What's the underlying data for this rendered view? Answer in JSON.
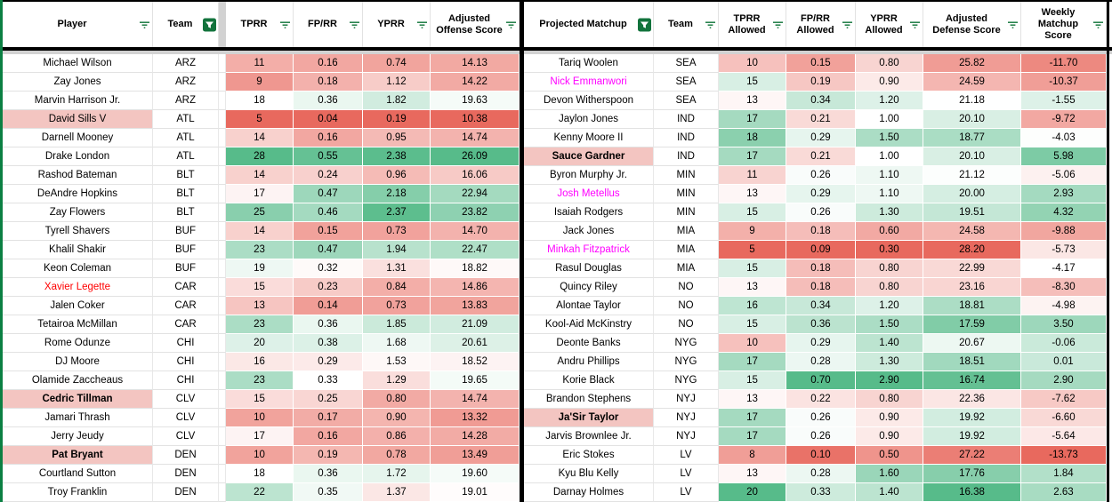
{
  "app": {
    "description": "Fantasy football WR vs cornerback matchup spreadsheet"
  },
  "colors": {
    "heat_red": "#e8695e",
    "heat_mid": "#ffffff",
    "heat_green": "#57bb8a",
    "name_highlight": "#f3c5c1",
    "special_text_red": "#ff0000",
    "special_text_magenta": "#ff00ff",
    "filter_icon_green": "#1e7e45",
    "active_filter_box_green": "#12733c",
    "frozen_divider_gray": "#d2d2d2",
    "table_border_black": "#000000",
    "sheet_border_green": "#0b8043"
  },
  "heat_scales": {
    "left": {
      "tprr": {
        "redEnd": 5,
        "mid": 18,
        "greenEnd": 28
      },
      "fprr": {
        "redEnd": 0.04,
        "mid": 0.33,
        "greenEnd": 0.57
      },
      "yprr": {
        "redEnd": 0.19,
        "mid": 1.6,
        "greenEnd": 2.4
      },
      "adj": {
        "redEnd": 10.38,
        "mid": 19.2,
        "greenEnd": 26.09
      }
    },
    "right": {
      "tprr": {
        "redEnd": 5,
        "mid": 13.5,
        "greenEnd": 20
      },
      "fprr": {
        "redEnd": 0.09,
        "mid": 0.25,
        "greenEnd": 0.52
      },
      "yprr": {
        "redEnd": 0.3,
        "mid": 1.0,
        "greenEnd": 2.0
      },
      "adj": {
        "redEnd": 28.2,
        "mid": 21.2,
        "greenEnd": 16.38
      },
      "weekly": {
        "redEnd": -13.73,
        "mid": -4.2,
        "greenEnd": 9.0
      }
    }
  },
  "left_table": {
    "headers": [
      {
        "label": "Player",
        "filter": "inactive"
      },
      {
        "label": "Team",
        "filter": "active"
      },
      {
        "label": "TPRR",
        "filter": "inactive"
      },
      {
        "label": "FP/RR",
        "filter": "inactive"
      },
      {
        "label": "YPRR",
        "filter": "inactive"
      },
      {
        "label": "Adjusted Offense Score",
        "filter": "inactive"
      }
    ],
    "rows": [
      {
        "player": "Michael Wilson",
        "team": "ARZ",
        "tprr": "11",
        "fprr": "0.16",
        "yprr": "0.74",
        "adj": "14.13"
      },
      {
        "player": "Zay Jones",
        "team": "ARZ",
        "tprr": "9",
        "fprr": "0.18",
        "yprr": "1.12",
        "adj": "14.22"
      },
      {
        "player": "Marvin Harrison Jr.",
        "team": "ARZ",
        "tprr": "18",
        "fprr": "0.36",
        "yprr": "1.82",
        "adj": "19.63"
      },
      {
        "player": "David Sills V",
        "team": "ATL",
        "tprr": "5",
        "fprr": "0.04",
        "yprr": "0.19",
        "adj": "10.38",
        "style": "pink"
      },
      {
        "player": "Darnell Mooney",
        "team": "ATL",
        "tprr": "14",
        "fprr": "0.16",
        "yprr": "0.95",
        "adj": "14.74"
      },
      {
        "player": "Drake London",
        "team": "ATL",
        "tprr": "28",
        "fprr": "0.55",
        "yprr": "2.38",
        "adj": "26.09"
      },
      {
        "player": "Rashod Bateman",
        "team": "BLT",
        "tprr": "14",
        "fprr": "0.24",
        "yprr": "0.96",
        "adj": "16.06"
      },
      {
        "player": "DeAndre Hopkins",
        "team": "BLT",
        "tprr": "17",
        "fprr": "0.47",
        "yprr": "2.18",
        "adj": "22.94"
      },
      {
        "player": "Zay Flowers",
        "team": "BLT",
        "tprr": "25",
        "fprr": "0.46",
        "yprr": "2.37",
        "adj": "23.82"
      },
      {
        "player": "Tyrell Shavers",
        "team": "BUF",
        "tprr": "14",
        "fprr": "0.15",
        "yprr": "0.73",
        "adj": "14.70"
      },
      {
        "player": "Khalil Shakir",
        "team": "BUF",
        "tprr": "23",
        "fprr": "0.47",
        "yprr": "1.94",
        "adj": "22.47"
      },
      {
        "player": "Keon Coleman",
        "team": "BUF",
        "tprr": "19",
        "fprr": "0.32",
        "yprr": "1.31",
        "adj": "18.82"
      },
      {
        "player": "Xavier Legette",
        "team": "CAR",
        "tprr": "15",
        "fprr": "0.23",
        "yprr": "0.84",
        "adj": "14.86",
        "style": "red-text"
      },
      {
        "player": "Jalen Coker",
        "team": "CAR",
        "tprr": "13",
        "fprr": "0.14",
        "yprr": "0.73",
        "adj": "13.83"
      },
      {
        "player": "Tetairoa McMillan",
        "team": "CAR",
        "tprr": "23",
        "fprr": "0.36",
        "yprr": "1.85",
        "adj": "21.09"
      },
      {
        "player": "Rome Odunze",
        "team": "CHI",
        "tprr": "20",
        "fprr": "0.38",
        "yprr": "1.68",
        "adj": "20.61"
      },
      {
        "player": "DJ Moore",
        "team": "CHI",
        "tprr": "16",
        "fprr": "0.29",
        "yprr": "1.53",
        "adj": "18.52"
      },
      {
        "player": "Olamide Zaccheaus",
        "team": "CHI",
        "tprr": "23",
        "fprr": "0.33",
        "yprr": "1.29",
        "adj": "19.65"
      },
      {
        "player": "Cedric Tillman",
        "team": "CLV",
        "tprr": "15",
        "fprr": "0.25",
        "yprr": "0.80",
        "adj": "14.74",
        "style": "bold-pink"
      },
      {
        "player": "Jamari Thrash",
        "team": "CLV",
        "tprr": "10",
        "fprr": "0.17",
        "yprr": "0.90",
        "adj": "13.32"
      },
      {
        "player": "Jerry Jeudy",
        "team": "CLV",
        "tprr": "17",
        "fprr": "0.16",
        "yprr": "0.86",
        "adj": "14.28"
      },
      {
        "player": "Pat Bryant",
        "team": "DEN",
        "tprr": "10",
        "fprr": "0.19",
        "yprr": "0.78",
        "adj": "13.49",
        "style": "bold-pink"
      },
      {
        "player": "Courtland Sutton",
        "team": "DEN",
        "tprr": "18",
        "fprr": "0.36",
        "yprr": "1.72",
        "adj": "19.60"
      },
      {
        "player": "Troy Franklin",
        "team": "DEN",
        "tprr": "22",
        "fprr": "0.35",
        "yprr": "1.37",
        "adj": "19.01"
      }
    ]
  },
  "right_table": {
    "headers": [
      {
        "label": "Projected Matchup",
        "filter": "active"
      },
      {
        "label": "Team",
        "filter": "inactive"
      },
      {
        "label": "TPRR Allowed",
        "filter": "inactive"
      },
      {
        "label": "FP/RR Allowed",
        "filter": "inactive"
      },
      {
        "label": "YPRR Allowed",
        "filter": "inactive"
      },
      {
        "label": "Adjusted Defense Score",
        "filter": "inactive"
      },
      {
        "label": "Weekly Matchup Score",
        "filter": "inactive"
      }
    ],
    "rows": [
      {
        "player": "Tariq Woolen",
        "team": "SEA",
        "tprr": "10",
        "fprr": "0.15",
        "yprr": "0.80",
        "adj": "25.82",
        "weekly": "-11.70"
      },
      {
        "player": "Nick Emmanwori",
        "team": "SEA",
        "tprr": "15",
        "fprr": "0.19",
        "yprr": "0.90",
        "adj": "24.59",
        "weekly": "-10.37",
        "style": "magenta-text"
      },
      {
        "player": "Devon Witherspoon",
        "team": "SEA",
        "tprr": "13",
        "fprr": "0.34",
        "yprr": "1.20",
        "adj": "21.18",
        "weekly": "-1.55"
      },
      {
        "player": "Jaylon Jones",
        "team": "IND",
        "tprr": "17",
        "fprr": "0.21",
        "yprr": "1.00",
        "adj": "20.10",
        "weekly": "-9.72"
      },
      {
        "player": "Kenny Moore II",
        "team": "IND",
        "tprr": "18",
        "fprr": "0.29",
        "yprr": "1.50",
        "adj": "18.77",
        "weekly": "-4.03"
      },
      {
        "player": "Sauce Gardner",
        "team": "IND",
        "tprr": "17",
        "fprr": "0.21",
        "yprr": "1.00",
        "adj": "20.10",
        "weekly": "5.98",
        "style": "bold-pink"
      },
      {
        "player": "Byron Murphy Jr.",
        "team": "MIN",
        "tprr": "11",
        "fprr": "0.26",
        "yprr": "1.10",
        "adj": "21.12",
        "weekly": "-5.06"
      },
      {
        "player": "Josh Metellus",
        "team": "MIN",
        "tprr": "13",
        "fprr": "0.29",
        "yprr": "1.10",
        "adj": "20.00",
        "weekly": "2.93",
        "style": "magenta-text"
      },
      {
        "player": "Isaiah Rodgers",
        "team": "MIN",
        "tprr": "15",
        "fprr": "0.26",
        "yprr": "1.30",
        "adj": "19.51",
        "weekly": "4.32"
      },
      {
        "player": "Jack Jones",
        "team": "MIA",
        "tprr": "9",
        "fprr": "0.18",
        "yprr": "0.60",
        "adj": "24.58",
        "weekly": "-9.88"
      },
      {
        "player": "Minkah Fitzpatrick",
        "team": "MIA",
        "tprr": "5",
        "fprr": "0.09",
        "yprr": "0.30",
        "adj": "28.20",
        "weekly": "-5.73",
        "style": "magenta-text"
      },
      {
        "player": "Rasul Douglas",
        "team": "MIA",
        "tprr": "15",
        "fprr": "0.18",
        "yprr": "0.80",
        "adj": "22.99",
        "weekly": "-4.17"
      },
      {
        "player": "Quincy Riley",
        "team": "NO",
        "tprr": "13",
        "fprr": "0.18",
        "yprr": "0.80",
        "adj": "23.16",
        "weekly": "-8.30"
      },
      {
        "player": "Alontae Taylor",
        "team": "NO",
        "tprr": "16",
        "fprr": "0.34",
        "yprr": "1.20",
        "adj": "18.81",
        "weekly": "-4.98"
      },
      {
        "player": "Kool-Aid McKinstry",
        "team": "NO",
        "tprr": "15",
        "fprr": "0.36",
        "yprr": "1.50",
        "adj": "17.59",
        "weekly": "3.50"
      },
      {
        "player": "Deonte Banks",
        "team": "NYG",
        "tprr": "10",
        "fprr": "0.29",
        "yprr": "1.40",
        "adj": "20.67",
        "weekly": "-0.06"
      },
      {
        "player": "Andru Phillips",
        "team": "NYG",
        "tprr": "17",
        "fprr": "0.28",
        "yprr": "1.30",
        "adj": "18.51",
        "weekly": "0.01"
      },
      {
        "player": "Korie Black",
        "team": "NYG",
        "tprr": "15",
        "fprr": "0.70",
        "yprr": "2.90",
        "adj": "16.74",
        "weekly": "2.90"
      },
      {
        "player": "Brandon Stephens",
        "team": "NYJ",
        "tprr": "13",
        "fprr": "0.22",
        "yprr": "0.80",
        "adj": "22.36",
        "weekly": "-7.62"
      },
      {
        "player": "Ja'Sir Taylor",
        "team": "NYJ",
        "tprr": "17",
        "fprr": "0.26",
        "yprr": "0.90",
        "adj": "19.92",
        "weekly": "-6.60",
        "style": "bold-pink"
      },
      {
        "player": "Jarvis Brownlee Jr.",
        "team": "NYJ",
        "tprr": "17",
        "fprr": "0.26",
        "yprr": "0.90",
        "adj": "19.92",
        "weekly": "-5.64"
      },
      {
        "player": "Eric Stokes",
        "team": "LV",
        "tprr": "8",
        "fprr": "0.10",
        "yprr": "0.50",
        "adj": "27.22",
        "weekly": "-13.73"
      },
      {
        "player": "Kyu Blu Kelly",
        "team": "LV",
        "tprr": "13",
        "fprr": "0.28",
        "yprr": "1.60",
        "adj": "17.76",
        "weekly": "1.84"
      },
      {
        "player": "Darnay Holmes",
        "team": "LV",
        "tprr": "20",
        "fprr": "0.33",
        "yprr": "1.40",
        "adj": "16.38",
        "weekly": "2.63"
      }
    ]
  }
}
